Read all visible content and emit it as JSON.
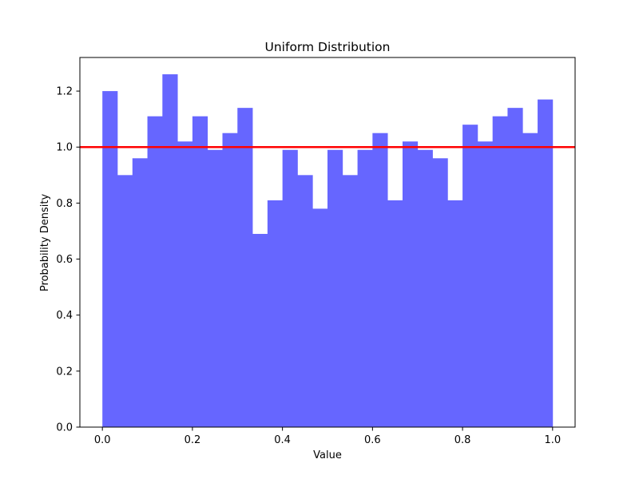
{
  "chart_data": {
    "type": "bar",
    "title": "Uniform Distribution",
    "xlabel": "Value",
    "ylabel": "Probability Density",
    "xlim": [
      -0.05,
      1.05
    ],
    "ylim": [
      0,
      1.32
    ],
    "xticks": [
      0.0,
      0.2,
      0.4,
      0.6,
      0.8,
      1.0
    ],
    "xtick_labels": [
      "0.0",
      "0.2",
      "0.4",
      "0.6",
      "0.8",
      "1.0"
    ],
    "yticks": [
      0.0,
      0.2,
      0.4,
      0.6,
      0.8,
      1.0,
      1.2
    ],
    "ytick_labels": [
      "0.0",
      "0.2",
      "0.4",
      "0.6",
      "0.8",
      "1.0",
      "1.2"
    ],
    "grid": false,
    "bin_edges": [
      0.0,
      0.0333,
      0.0667,
      0.1,
      0.1333,
      0.1667,
      0.2,
      0.2333,
      0.2667,
      0.3,
      0.3333,
      0.3667,
      0.4,
      0.4333,
      0.4667,
      0.5,
      0.5333,
      0.5667,
      0.6,
      0.6333,
      0.6667,
      0.7,
      0.7333,
      0.7667,
      0.8,
      0.8333,
      0.8667,
      0.9,
      0.9333,
      0.9667,
      1.0
    ],
    "values": [
      1.2,
      0.9,
      0.96,
      1.11,
      1.26,
      1.02,
      1.11,
      0.99,
      1.05,
      1.14,
      0.69,
      0.81,
      0.99,
      0.9,
      0.78,
      0.99,
      0.9,
      0.99,
      1.05,
      0.81,
      1.02,
      0.99,
      0.96,
      0.81,
      1.08,
      1.02,
      1.11,
      1.14,
      1.05,
      1.17
    ],
    "bar_color": "#6666ff",
    "reference_line": {
      "y": 1.0,
      "color": "#ff0000"
    }
  }
}
